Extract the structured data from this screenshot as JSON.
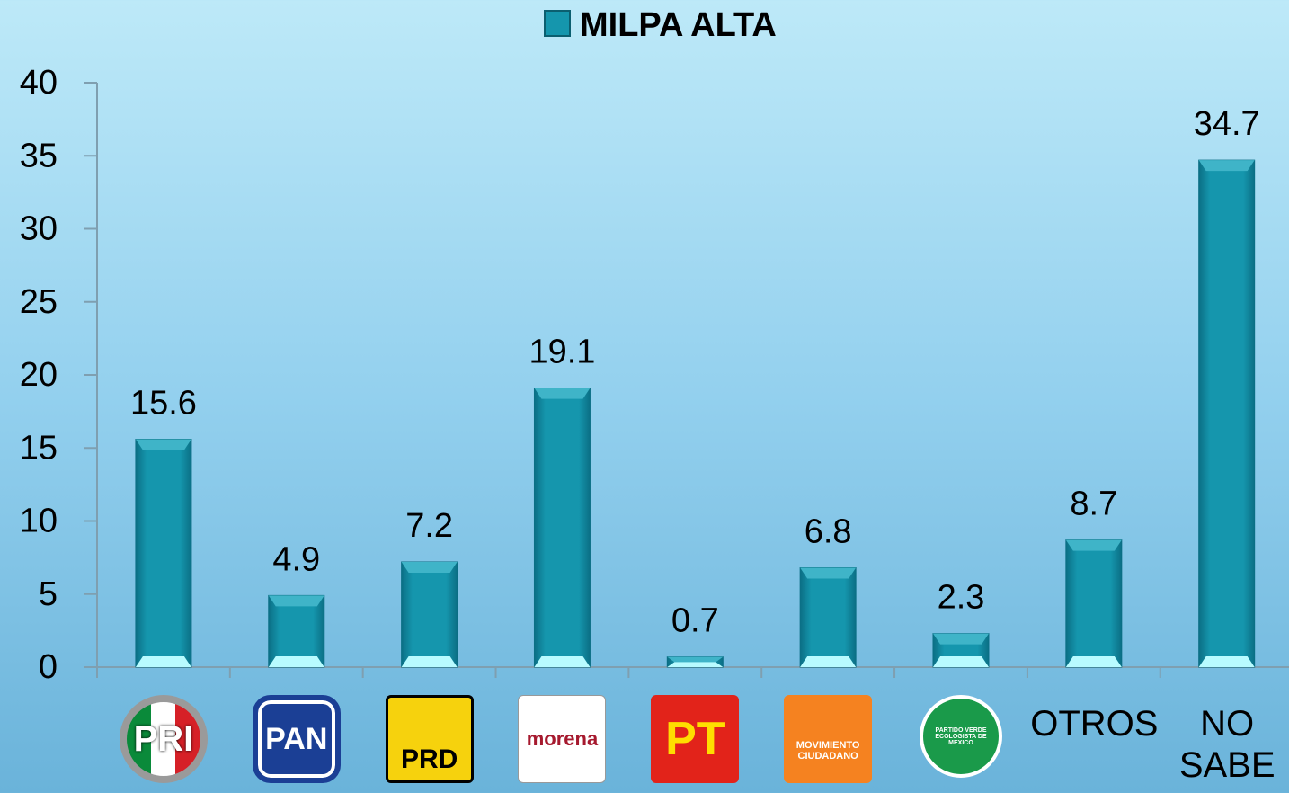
{
  "chart_data": {
    "type": "bar",
    "categories": [
      "PRI",
      "PAN",
      "PRD",
      "morena",
      "PT",
      "MOVIMIENTO CIUDADANO",
      "PARTIDO VERDE ECOLOGISTA DE MEXICO",
      "OTROS",
      "NO SABE"
    ],
    "series": [
      {
        "name": "MILPA ALTA",
        "color": "#1596ad",
        "values": [
          15.6,
          4.9,
          7.2,
          19.1,
          0.7,
          6.8,
          2.3,
          8.7,
          34.7
        ]
      }
    ],
    "ylim": [
      0,
      40
    ],
    "yticks": [
      0,
      5,
      10,
      15,
      20,
      25,
      30,
      35,
      40
    ],
    "grid": false,
    "legend": "top"
  }
}
